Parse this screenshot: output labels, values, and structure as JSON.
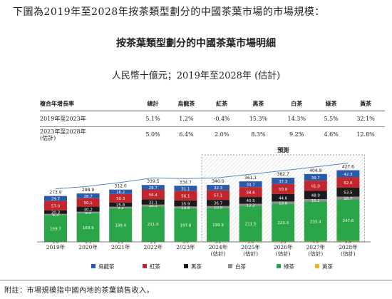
{
  "intro": "下圖為2019年至2028年按茶類型劃分的中國茶葉市場的市場規模：",
  "footnote": "附註：市場規模指中國內地的茶葉銷售收入。",
  "cagr_table": {
    "header": [
      "複合年增長率",
      "總計",
      "烏龍茶",
      "紅茶",
      "黑茶",
      "白茶",
      "綠茶",
      "黃茶"
    ],
    "rows": [
      {
        "label": "2019年至2023年",
        "values": [
          "5.1%",
          "1.2%",
          "-0.4%",
          "15.3%",
          "14.3%",
          "5.5%",
          "32.1%"
        ]
      },
      {
        "label": "2023年至2028年\n(估計)",
        "values": [
          "5.0%",
          "6.4%",
          "2.0%",
          "8.3%",
          "9.2%",
          "4.6%",
          "12.8%"
        ]
      }
    ]
  },
  "chart_data": {
    "type": "bar",
    "stacked": true,
    "title": "按茶葉類型劃分的中國茶葉市場明細",
    "subtitle": "人民幣十億元；2019年至2028年 (估計)",
    "forecast_label": "預測",
    "categories": [
      "2019年",
      "2020年",
      "2021年",
      "2022年",
      "2023年",
      "2024年\n(估計)",
      "2025年\n(估計)",
      "2026年\n(估計)",
      "2027年\n(估計)",
      "2028年\n(估計)"
    ],
    "forecast_start_index": 5,
    "totals": [
      273.9,
      288.9,
      312.0,
      339.5,
      334.7,
      340.0,
      361.1,
      382.7,
      404.9,
      427.6
    ],
    "series": [
      {
        "name": "黃茶",
        "color": "#e8b820",
        "values": [
          1.0,
          1.1,
          1.2,
          1.2,
          3.0,
          3.1,
          3.6,
          3.9,
          4.9,
          5.5
        ]
      },
      {
        "name": "綠茶",
        "color": "#2aa548",
        "values": [
          159.7,
          169.9,
          199.4,
          211.0,
          197.8,
          199.9,
          211.5,
          223.3,
          235.4,
          247.6
        ]
      },
      {
        "name": "白茶",
        "color": "#8f8f8f",
        "values": [
          6.3,
          9.0,
          9.1,
          10.1,
          10.8,
          10.9,
          12.2,
          13.6,
          15.1,
          16.7
        ]
      },
      {
        "name": "黑茶",
        "color": "#1a1a1a",
        "values": [
          20.3,
          30.2,
          25.8,
          32.1,
          35.9,
          36.7,
          40.5,
          44.6,
          48.9,
          53.5
        ]
      },
      {
        "name": "紅茶",
        "color": "#c1272d",
        "values": [
          57.0,
          50.1,
          50.3,
          56.4,
          56.1,
          57.1,
          58.6,
          59.9,
          61.0,
          62.0
        ]
      },
      {
        "name": "烏龍茶",
        "color": "#2b5aa8",
        "values": [
          29.7,
          28.7,
          26.2,
          28.7,
          31.1,
          32.3,
          34.7,
          37.3,
          39.7,
          42.3
        ]
      }
    ],
    "legend": [
      "烏龍茶",
      "紅茶",
      "黑茶",
      "白茶",
      "綠茶",
      "黃茶"
    ],
    "legend_position": "bottom"
  }
}
